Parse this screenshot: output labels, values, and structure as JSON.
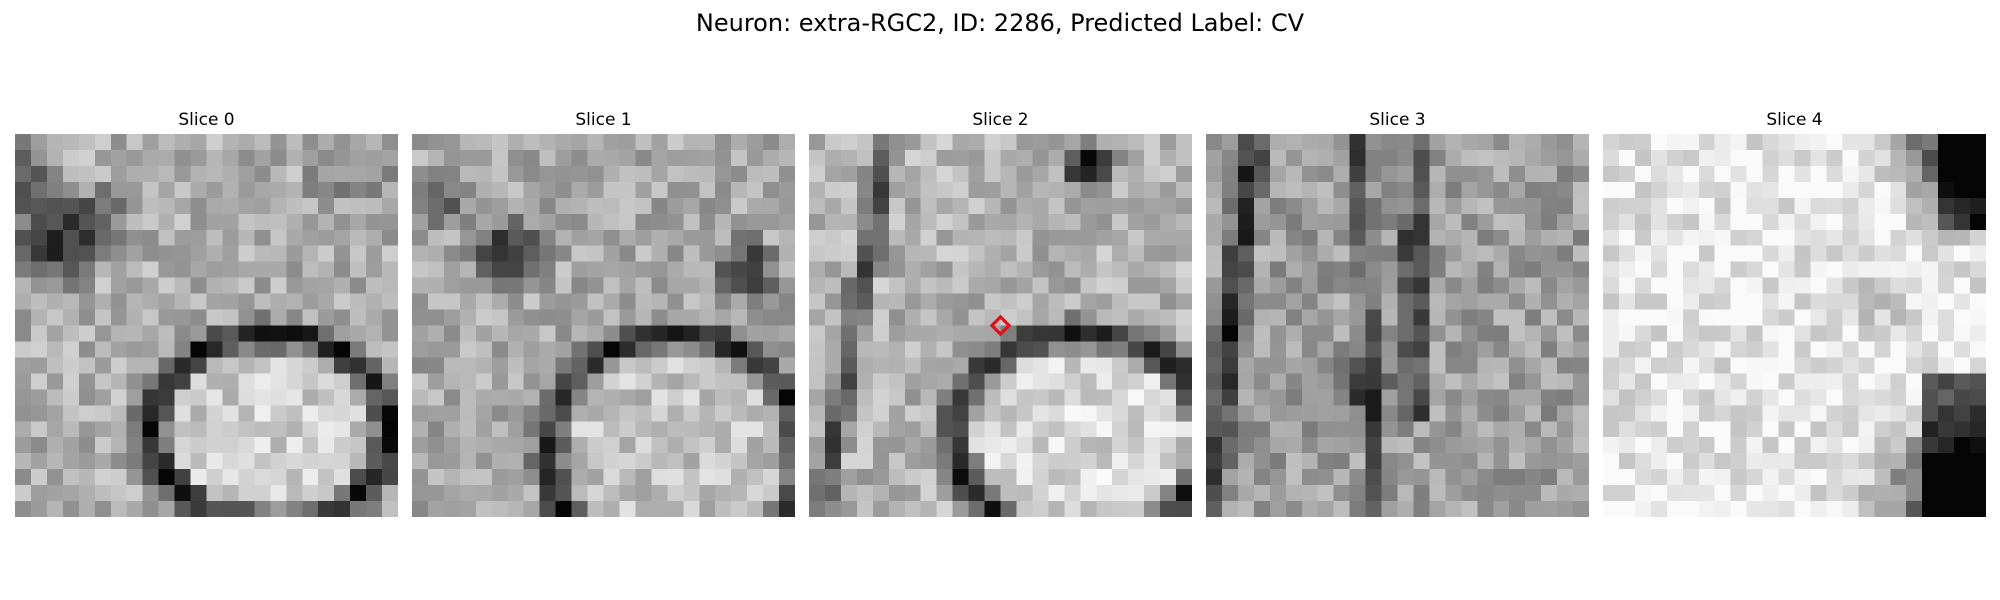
{
  "figure": {
    "title": "Neuron: extra-RGC2, ID: 2286, Predicted Label: CV",
    "slices": [
      {
        "title": "Slice 0",
        "scene": "A",
        "marker": false
      },
      {
        "title": "Slice 1",
        "scene": "B",
        "marker": false
      },
      {
        "title": "Slice 2",
        "scene": "C",
        "marker": true
      },
      {
        "title": "Slice 3",
        "scene": "D",
        "marker": false
      },
      {
        "title": "Slice 4",
        "scene": "E",
        "marker": false
      }
    ],
    "marker_color": "#e0101a",
    "colormap": "grayscale"
  }
}
